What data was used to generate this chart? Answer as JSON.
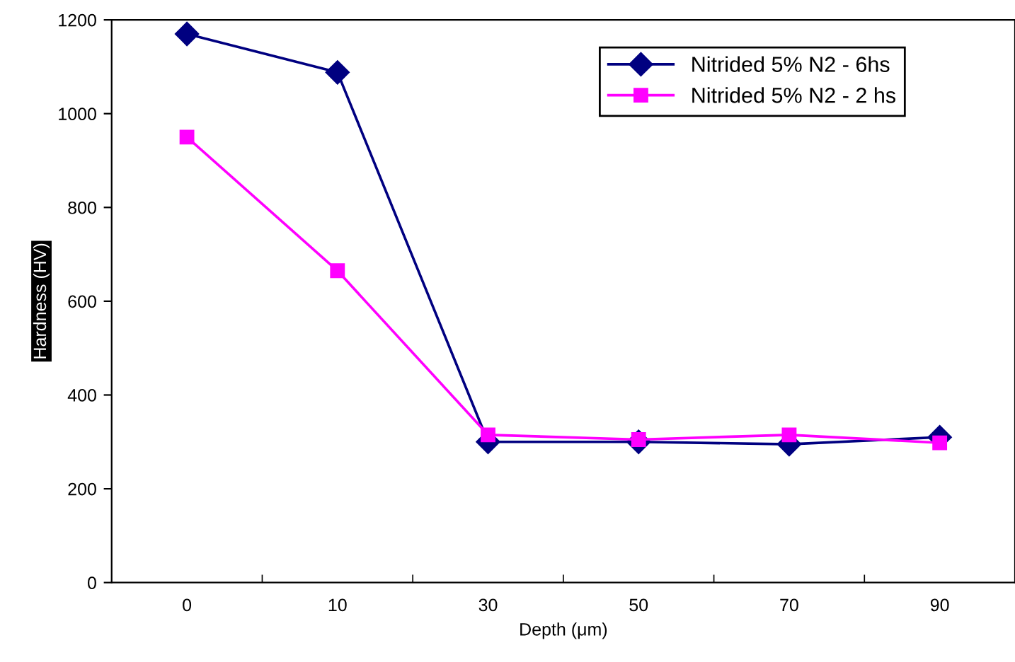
{
  "chart_data": {
    "type": "line",
    "xlabel": "Depth (μm)",
    "ylabel": "Hardness (HV)",
    "categories": [
      "0",
      "10",
      "30",
      "50",
      "70",
      "90"
    ],
    "series": [
      {
        "name": "Nitrided 5% N2 - 6hs",
        "color": "#000080",
        "marker": "diamond",
        "values": [
          1170,
          1088,
          300,
          300,
          295,
          310
        ]
      },
      {
        "name": "Nitrided 5% N2 - 2 hs",
        "color": "#ff00ff",
        "marker": "square",
        "values": [
          950,
          665,
          315,
          305,
          315,
          298
        ]
      }
    ],
    "ylim": [
      0,
      1200
    ],
    "yticks": [
      0,
      200,
      400,
      600,
      800,
      1000,
      1200
    ],
    "grid": false,
    "legend": "top right",
    "line_style": "solid"
  }
}
